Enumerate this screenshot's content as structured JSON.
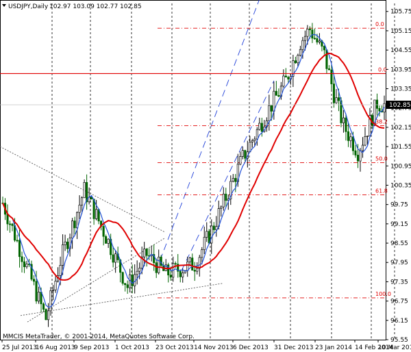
{
  "header": {
    "symbol_label": "USDJPY,Daily",
    "ohlc": "102.97 103.09 102.77 102.85"
  },
  "copyright": "MMCIS MetaTrader, © 2001-2014, MetaQuotes Software Corp.",
  "colors": {
    "bull": "#000000",
    "bear": "#006400",
    "ma_fast": "#1f4fd8",
    "ma_slow": "#e00000",
    "level_line": "#e00000",
    "fib": "#e00000",
    "channel": "#1f3fd8",
    "trendline": "#555555",
    "price_badge_bg": "#000000",
    "price_badge_fg": "#ffffff"
  },
  "chart_data": {
    "type": "candlestick",
    "y_range": [
      95.55,
      106.0
    ],
    "y_ticks": [
      "105.75",
      "105.15",
      "104.55",
      "103.95",
      "103.35",
      "102.75",
      "102.15",
      "101.55",
      "100.95",
      "100.35",
      "99.75",
      "99.15",
      "98.55",
      "97.95",
      "97.35",
      "96.75",
      "96.15",
      "95.55"
    ],
    "x_ticks": [
      "25 Jul 2013",
      "16 Aug 2013",
      "9 Sep 2013",
      "1 Oct 2013",
      "23 Oct 2013",
      "14 Nov 2013",
      "6 Dec 2013",
      "31 Dec 2013",
      "23 Jan 2014",
      "14 Feb 2014",
      "10 Mar 2014"
    ],
    "current_price": "102.85",
    "horizontal_level": 103.82,
    "fibonacci": [
      {
        "label": "0.0",
        "value": 105.23
      },
      {
        "label": "0.0",
        "value": 103.82
      },
      {
        "label": "38.2",
        "value": 102.2
      },
      {
        "label": "50.0",
        "value": 101.05
      },
      {
        "label": "61.8",
        "value": 100.05
      },
      {
        "label": "100.0",
        "value": 96.85
      }
    ]
  }
}
